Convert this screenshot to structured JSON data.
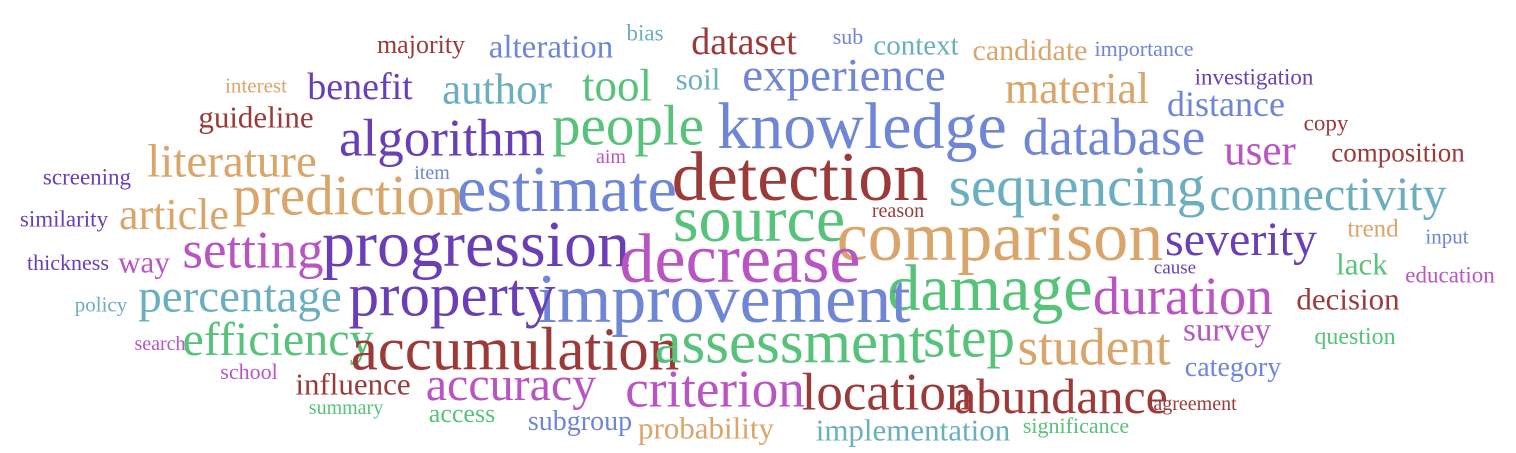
{
  "colors": {
    "red": "#9c3a3a",
    "purple": "#6a3fb5",
    "blue": "#6f86d6",
    "teal": "#6aaebf",
    "green": "#57c27a",
    "orange": "#d9a56a",
    "magenta": "#b955c2"
  },
  "words": [
    {
      "text": "majority",
      "color": "red",
      "w": 0.14
    },
    {
      "text": "alteration",
      "color": "blue",
      "w": 0.22
    },
    {
      "text": "bias",
      "color": "teal",
      "w": 0.1
    },
    {
      "text": "dataset",
      "color": "red",
      "w": 0.28
    },
    {
      "text": "sub",
      "color": "blue",
      "w": 0.09
    },
    {
      "text": "context",
      "color": "teal",
      "w": 0.17
    },
    {
      "text": "candidate",
      "color": "orange",
      "w": 0.19
    },
    {
      "text": "importance",
      "color": "blue",
      "w": 0.09
    },
    {
      "text": "interest",
      "color": "orange",
      "w": 0.08
    },
    {
      "text": "benefit",
      "color": "purple",
      "w": 0.28
    },
    {
      "text": "author",
      "color": "teal",
      "w": 0.34
    },
    {
      "text": "tool",
      "color": "green",
      "w": 0.36
    },
    {
      "text": "soil",
      "color": "teal",
      "w": 0.2
    },
    {
      "text": "experience",
      "color": "blue",
      "w": 0.38
    },
    {
      "text": "material",
      "color": "orange",
      "w": 0.35
    },
    {
      "text": "investigation",
      "color": "purple",
      "w": 0.1
    },
    {
      "text": "distance",
      "color": "blue",
      "w": 0.25
    },
    {
      "text": "guideline",
      "color": "red",
      "w": 0.2
    },
    {
      "text": "algorithm",
      "color": "purple",
      "w": 0.45
    },
    {
      "text": "people",
      "color": "green",
      "w": 0.5
    },
    {
      "text": "knowledge",
      "color": "blue",
      "w": 0.6
    },
    {
      "text": "database",
      "color": "blue",
      "w": 0.45
    },
    {
      "text": "copy",
      "color": "red",
      "w": 0.11
    },
    {
      "text": "user",
      "color": "magenta",
      "w": 0.34
    },
    {
      "text": "composition",
      "color": "red",
      "w": 0.15
    },
    {
      "text": "literature",
      "color": "orange",
      "w": 0.38
    },
    {
      "text": "aim",
      "color": "magenta",
      "w": 0.07
    },
    {
      "text": "screening",
      "color": "purple",
      "w": 0.1
    },
    {
      "text": "item",
      "color": "blue",
      "w": 0.07
    },
    {
      "text": "detection",
      "color": "red",
      "w": 0.65
    },
    {
      "text": "sequencing",
      "color": "teal",
      "w": 0.5
    },
    {
      "text": "estimate",
      "color": "blue",
      "w": 0.6
    },
    {
      "text": "prediction",
      "color": "orange",
      "w": 0.5
    },
    {
      "text": "connectivity",
      "color": "teal",
      "w": 0.4
    },
    {
      "text": "similarity",
      "color": "purple",
      "w": 0.1
    },
    {
      "text": "article",
      "color": "orange",
      "w": 0.35
    },
    {
      "text": "source",
      "color": "green",
      "w": 0.6
    },
    {
      "text": "reason",
      "color": "red",
      "w": 0.07
    },
    {
      "text": "trend",
      "color": "orange",
      "w": 0.13
    },
    {
      "text": "setting",
      "color": "magenta",
      "w": 0.45
    },
    {
      "text": "progression",
      "color": "purple",
      "w": 0.6
    },
    {
      "text": "comparison",
      "color": "orange",
      "w": 0.65
    },
    {
      "text": "severity",
      "color": "purple",
      "w": 0.4
    },
    {
      "text": "input",
      "color": "blue",
      "w": 0.08
    },
    {
      "text": "decrease",
      "color": "magenta",
      "w": 0.65
    },
    {
      "text": "thickness",
      "color": "purple",
      "w": 0.09
    },
    {
      "text": "way",
      "color": "magenta",
      "w": 0.2
    },
    {
      "text": "lack",
      "color": "green",
      "w": 0.2
    },
    {
      "text": "cause",
      "color": "purple",
      "w": 0.06
    },
    {
      "text": "education",
      "color": "magenta",
      "w": 0.1
    },
    {
      "text": "damage",
      "color": "green",
      "w": 0.6
    },
    {
      "text": "percentage",
      "color": "teal",
      "w": 0.38
    },
    {
      "text": "improvement",
      "color": "blue",
      "w": 0.65
    },
    {
      "text": "property",
      "color": "purple",
      "w": 0.55
    },
    {
      "text": "duration",
      "color": "magenta",
      "w": 0.47
    },
    {
      "text": "decision",
      "color": "red",
      "w": 0.2
    },
    {
      "text": "policy",
      "color": "teal",
      "w": 0.08
    },
    {
      "text": "efficiency",
      "color": "green",
      "w": 0.4
    },
    {
      "text": "search",
      "color": "magenta",
      "w": 0.07
    },
    {
      "text": "step",
      "color": "green",
      "w": 0.5
    },
    {
      "text": "survey",
      "color": "magenta",
      "w": 0.22
    },
    {
      "text": "question",
      "color": "green",
      "w": 0.12
    },
    {
      "text": "accumulation",
      "color": "red",
      "w": 0.55
    },
    {
      "text": "assessment",
      "color": "green",
      "w": 0.55
    },
    {
      "text": "student",
      "color": "orange",
      "w": 0.45
    },
    {
      "text": "school",
      "color": "magenta",
      "w": 0.09
    },
    {
      "text": "category",
      "color": "blue",
      "w": 0.16
    },
    {
      "text": "influence",
      "color": "red",
      "w": 0.2
    },
    {
      "text": "accuracy",
      "color": "magenta",
      "w": 0.4
    },
    {
      "text": "criterion",
      "color": "magenta",
      "w": 0.45
    },
    {
      "text": "location",
      "color": "red",
      "w": 0.45
    },
    {
      "text": "abundance",
      "color": "red",
      "w": 0.42
    },
    {
      "text": "summary",
      "color": "green",
      "w": 0.07
    },
    {
      "text": "access",
      "color": "green",
      "w": 0.14
    },
    {
      "text": "agreement",
      "color": "red",
      "w": 0.07
    },
    {
      "text": "subgroup",
      "color": "blue",
      "w": 0.16
    },
    {
      "text": "probability",
      "color": "orange",
      "w": 0.2
    },
    {
      "text": "implementation",
      "color": "teal",
      "w": 0.2
    },
    {
      "text": "significance",
      "color": "green",
      "w": 0.09
    }
  ]
}
